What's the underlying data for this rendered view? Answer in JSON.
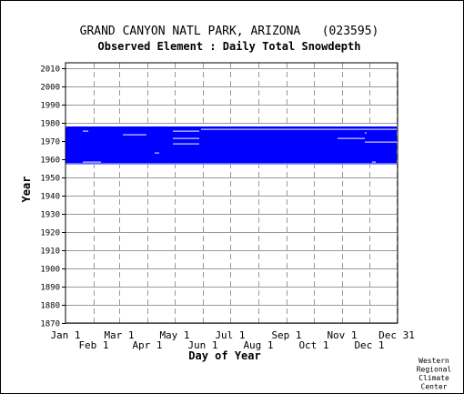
{
  "chart_data": {
    "type": "heatmap",
    "title": "GRAND CANYON NATL PARK, ARIZONA   (023595)",
    "subtitle": "Observed Element : Daily Total Snowdepth",
    "xlabel": "Day of Year",
    "ylabel": "Year",
    "xlim": [
      1,
      366
    ],
    "ylim": [
      1870,
      2013
    ],
    "grid": true,
    "y_ticks": [
      2010,
      2000,
      1990,
      1980,
      1970,
      1960,
      1950,
      1940,
      1930,
      1920,
      1910,
      1900,
      1890,
      1880,
      1870
    ],
    "x_ticks_upper": [
      {
        "label": "Jan 1",
        "day": 1
      },
      {
        "label": "Mar 1",
        "day": 60
      },
      {
        "label": "May 1",
        "day": 121
      },
      {
        "label": "Jul 1",
        "day": 182
      },
      {
        "label": "Sep 1",
        "day": 244
      },
      {
        "label": "Nov 1",
        "day": 305
      },
      {
        "label": "Dec 31",
        "day": 365
      }
    ],
    "x_ticks_lower": [
      {
        "label": "Feb 1",
        "day": 32
      },
      {
        "label": "Apr 1",
        "day": 91
      },
      {
        "label": "Jun 1",
        "day": 152
      },
      {
        "label": "Aug 1",
        "day": 213
      },
      {
        "label": "Oct 1",
        "day": 274
      },
      {
        "label": "Dec 1",
        "day": 335
      }
    ],
    "coverage": {
      "color": "#0000ff",
      "year_start": 1957,
      "year_end": 1977,
      "day_start": 1,
      "day_end": 365
    },
    "gaps": [
      {
        "year": 1977,
        "day_start": 1,
        "day_end": 2
      },
      {
        "year": 1975,
        "day_start": 20,
        "day_end": 26
      },
      {
        "year": 1976,
        "day_start": 150,
        "day_end": 365
      },
      {
        "year": 1973,
        "day_start": 64,
        "day_end": 90
      },
      {
        "year": 1975,
        "day_start": 119,
        "day_end": 148
      },
      {
        "year": 1971,
        "day_start": 119,
        "day_end": 148
      },
      {
        "year": 1968,
        "day_start": 119,
        "day_end": 148
      },
      {
        "year": 1963,
        "day_start": 99,
        "day_end": 104
      },
      {
        "year": 1958,
        "day_start": 20,
        "day_end": 40
      },
      {
        "year": 1957,
        "day_start": 1,
        "day_end": 365
      },
      {
        "year": 1971,
        "day_start": 300,
        "day_end": 330
      },
      {
        "year": 1969,
        "day_start": 330,
        "day_end": 365
      },
      {
        "year": 1974,
        "day_start": 330,
        "day_end": 332
      },
      {
        "year": 1958,
        "day_start": 338,
        "day_end": 342
      }
    ],
    "credit": [
      "Western",
      "Regional",
      "Climate",
      "Center"
    ]
  }
}
